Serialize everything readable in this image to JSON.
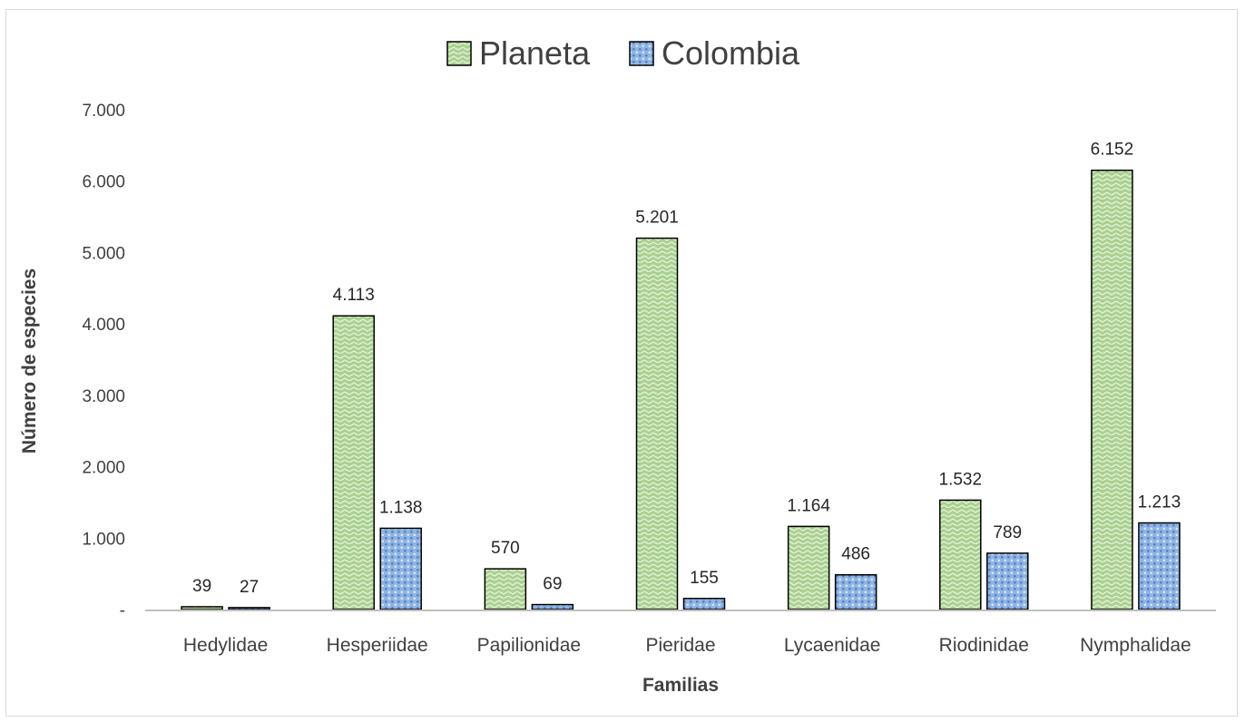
{
  "chart_data": {
    "type": "bar",
    "title": "",
    "xlabel": "Familias",
    "ylabel": "Número de especies",
    "categories": [
      "Hedylidae",
      "Hesperiidae",
      "Papilionidae",
      "Pieridae",
      "Lycaenidae",
      "Riodinidae",
      "Nymphalidae"
    ],
    "series": [
      {
        "name": "Planeta",
        "values": [
          39,
          4113,
          570,
          5201,
          1164,
          1532,
          6152
        ],
        "labels": [
          "39",
          "4.113",
          "570",
          "5.201",
          "1.164",
          "1.532",
          "6.152"
        ],
        "color": "#a9d18e",
        "pattern": "zigzag"
      },
      {
        "name": "Colombia",
        "values": [
          27,
          1138,
          69,
          155,
          486,
          789,
          1213
        ],
        "labels": [
          "27",
          "1.138",
          "69",
          "155",
          "486",
          "789",
          "1.213"
        ],
        "color": "#8fb4e3",
        "pattern": "dots"
      }
    ],
    "ylim": [
      0,
      7000
    ],
    "yticks": [
      0,
      1000,
      2000,
      3000,
      4000,
      5000,
      6000,
      7000
    ],
    "ytick_labels": [
      "-",
      "1.000",
      "2.000",
      "3.000",
      "4.000",
      "5.000",
      "6.000",
      "7.000"
    ],
    "grid": false,
    "legend_position": "top-center"
  }
}
